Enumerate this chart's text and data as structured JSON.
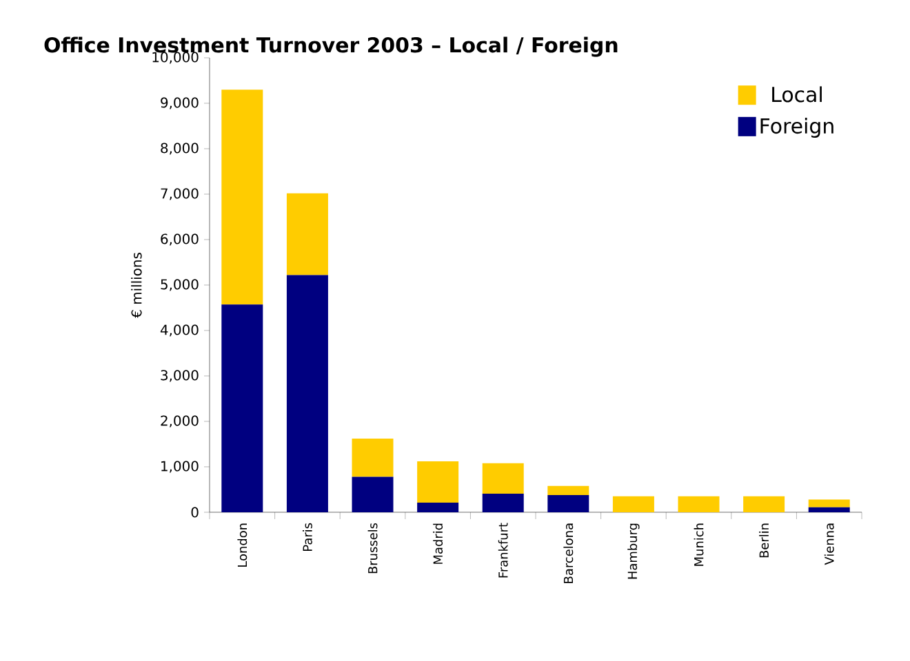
{
  "chart_data": {
    "type": "bar",
    "title": "Office Investment Turnover 2003 – Local / Foreign",
    "ylabel": "€ millions",
    "categories": [
      "London",
      "Paris",
      "Brussels",
      "Madrid",
      "Frankfurt",
      "Barcelona",
      "Hamburg",
      "Munich",
      "Berlin",
      "Vienna"
    ],
    "stacked": true,
    "series": [
      {
        "name": "Foreign",
        "color": "#000080",
        "values": [
          4570,
          5220,
          780,
          210,
          410,
          380,
          0,
          0,
          0,
          110
        ]
      },
      {
        "name": "Local",
        "color": "#ffcc00",
        "values": [
          4730,
          1800,
          840,
          910,
          670,
          200,
          350,
          350,
          350,
          170
        ]
      }
    ],
    "ylim": [
      0,
      10000
    ],
    "yticks": [
      0,
      {
        "value": 1000,
        "label": "1,000"
      },
      {
        "value": 2000,
        "label": "2,000"
      },
      {
        "value": 3000,
        "label": "3,000"
      },
      {
        "value": 4000,
        "label": "4,000"
      },
      {
        "value": 5000,
        "label": "5,000"
      },
      {
        "value": 6000,
        "label": "6,000"
      },
      {
        "value": 7000,
        "label": "7,000"
      },
      {
        "value": 8000,
        "label": "8,000"
      },
      {
        "value": 9000,
        "label": "9,000"
      },
      {
        "value": 10000,
        "label": "10,000"
      }
    ],
    "legend": "top right"
  }
}
